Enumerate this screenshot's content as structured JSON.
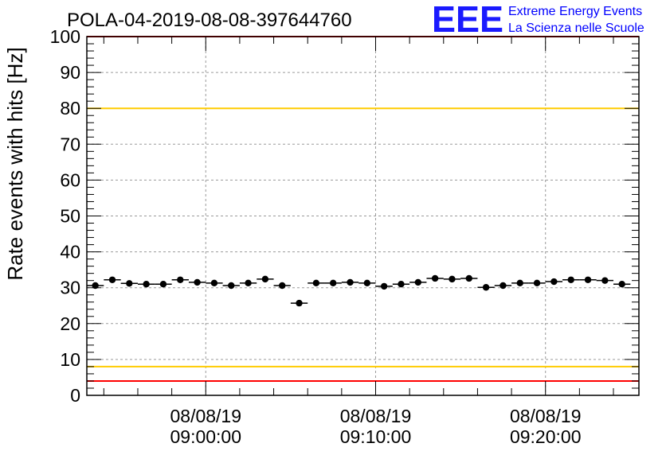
{
  "title": "POLA-04-2019-08-08-397644760",
  "logo": {
    "letters": "EEE",
    "line1": "Extreme Energy Events",
    "line2": "La Scienza nelle Scuole",
    "color": "#1a1aff"
  },
  "chart_data": {
    "type": "scatter",
    "title": "POLA-04-2019-08-08-397644760",
    "xlabel": "",
    "ylabel": "Rate events with hits [Hz]",
    "ylim": [
      0,
      100
    ],
    "xlim_minutes_after_0900": [
      -7,
      25.5
    ],
    "y_ticks": [
      0,
      10,
      20,
      30,
      40,
      50,
      60,
      70,
      80,
      90,
      100
    ],
    "x_ticks": [
      {
        "minute": 0,
        "date": "08/08/19",
        "time": "09:00:00"
      },
      {
        "minute": 10,
        "date": "08/08/19",
        "time": "09:10:00"
      },
      {
        "minute": 20,
        "date": "08/08/19",
        "time": "09:20:00"
      }
    ],
    "grid": true,
    "reference_lines": [
      {
        "y": 100,
        "color": "#ff0000"
      },
      {
        "y": 80,
        "color": "#ffcc00"
      },
      {
        "y": 8,
        "color": "#ffcc00"
      },
      {
        "y": 4,
        "color": "#ff0000"
      }
    ],
    "bin_width_minutes": 1,
    "series": [
      {
        "color": "#000000",
        "x": [
          -6.5,
          -5.5,
          -4.5,
          -3.5,
          -2.5,
          -1.5,
          -0.5,
          0.5,
          1.5,
          2.5,
          3.5,
          4.5,
          5.5,
          6.5,
          7.5,
          8.5,
          9.5,
          10.5,
          11.5,
          12.5,
          13.5,
          14.5,
          15.5,
          16.5,
          17.5,
          18.5,
          19.5,
          20.5,
          21.5,
          22.5,
          23.5,
          24.5
        ],
        "y": [
          30.6,
          32.2,
          31.2,
          31.0,
          31.0,
          32.2,
          31.5,
          31.3,
          30.6,
          31.3,
          32.4,
          30.6,
          25.7,
          31.3,
          31.3,
          31.5,
          31.3,
          30.4,
          31.0,
          31.5,
          32.6,
          32.4,
          32.6,
          30.1,
          30.6,
          31.3,
          31.3,
          31.7,
          32.2,
          32.2,
          32.0,
          31.0
        ]
      }
    ]
  }
}
